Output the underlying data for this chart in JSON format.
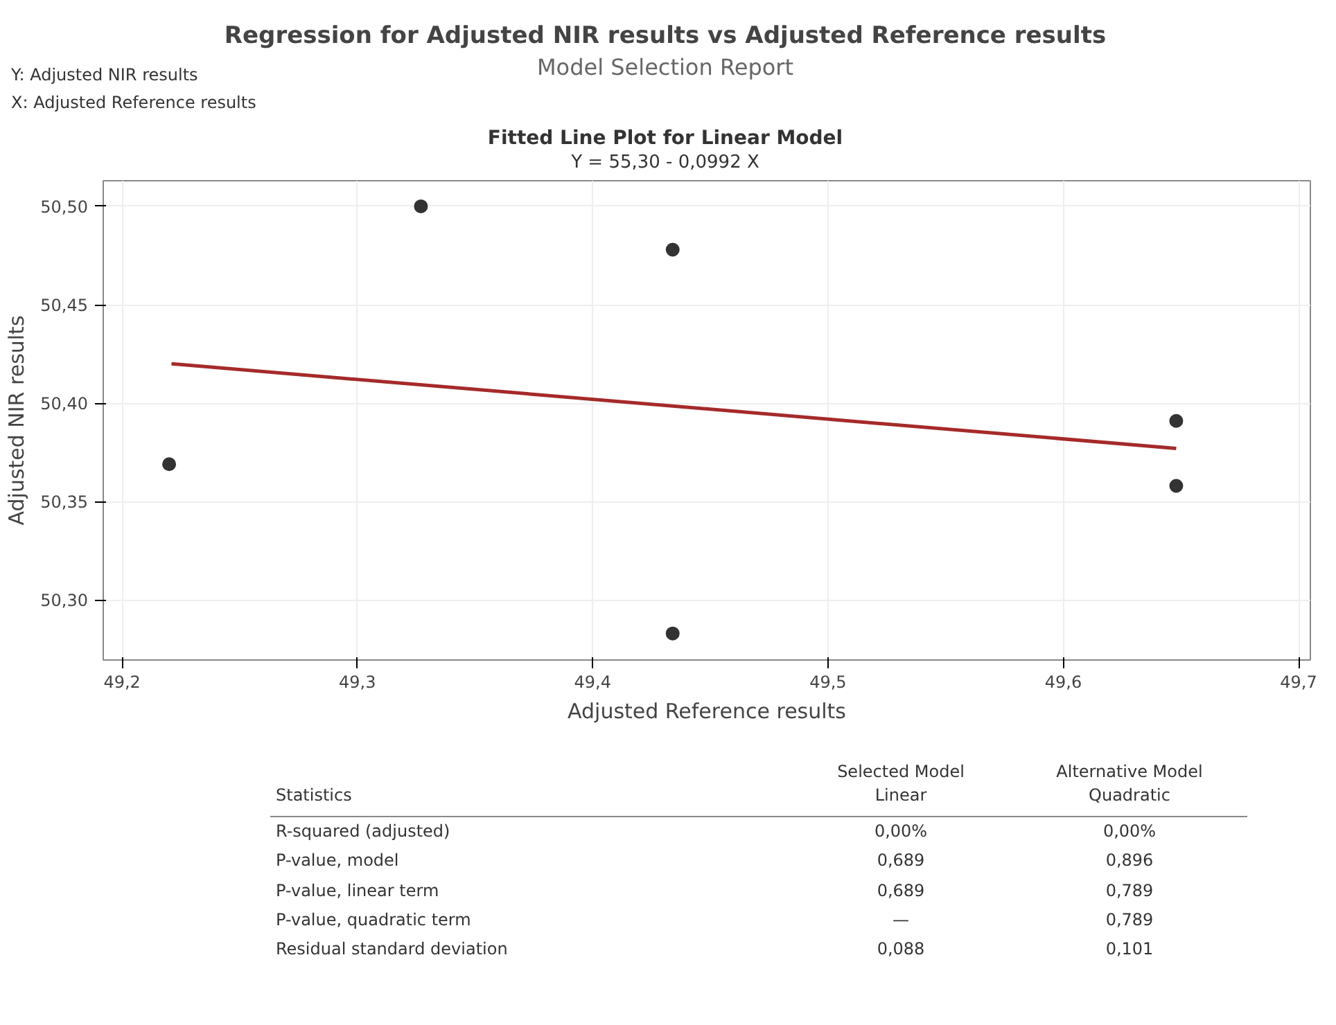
{
  "chart_data": {
    "type": "scatter",
    "title": "Regression for Adjusted NIR results vs Adjusted Reference results",
    "subtitle": "Model Selection Report",
    "xlabel": "Adjusted Reference results",
    "ylabel": "Adjusted NIR results",
    "annotations": [
      "Y: Adjusted NIR results",
      "X: Adjusted Reference results",
      "Fitted Line Plot for Linear Model",
      "Y = 55,30 - 0,0992 X",
      "Statistics",
      "Selected Model\nLinear",
      "Alternative Model\nQuadratic",
      "R-squared (adjusted)",
      "0,00%",
      "0,00%",
      "P-value, model",
      "0,689",
      "0,896",
      "P-value, linear term",
      "0,689",
      "0,789",
      "P-value, quadratic term",
      "—",
      "0,789",
      "Residual standard deviation",
      "0,088",
      "0,101"
    ],
    "series": [
      {
        "marker": "circle",
        "color": "#333333",
        "x": [
          49.22,
          49.327,
          49.434,
          49.434,
          49.648,
          49.648
        ],
        "values": [
          50.369,
          50.5,
          50.478,
          50.283,
          50.391,
          50.358
        ]
      },
      {
        "type": "line",
        "marker": "none",
        "color": "#a52a2a",
        "x": [
          49.221,
          49.648
        ],
        "values": [
          50.42,
          50.377
        ]
      }
    ],
    "xlim": [
      49.192,
      49.705
    ],
    "ylim": [
      50.2695,
      50.513
    ],
    "xticks": [
      {
        "value": 49.2,
        "label": "49,2"
      },
      {
        "value": 49.3,
        "label": "49,3"
      },
      {
        "value": 49.4,
        "label": "49,4"
      },
      {
        "value": 49.5,
        "label": "49,5"
      },
      {
        "value": 49.6,
        "label": "49,6"
      },
      {
        "value": 49.7,
        "label": "49,7"
      }
    ],
    "yticks": [
      {
        "value": 50.3,
        "label": "50,30"
      },
      {
        "value": 50.35,
        "label": "50,35"
      },
      {
        "value": 50.4,
        "label": "50,40"
      },
      {
        "value": 50.45,
        "label": "50,45"
      },
      {
        "value": 50.5,
        "label": "50,50"
      }
    ],
    "grid": true,
    "line_style": "solid"
  }
}
